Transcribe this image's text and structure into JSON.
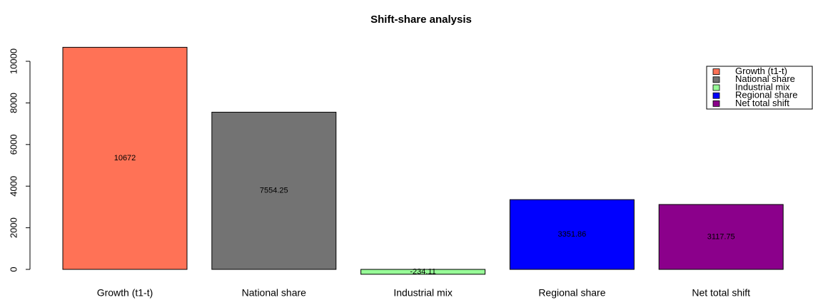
{
  "chart_data": {
    "type": "bar",
    "title": "Shift-share analysis",
    "categories": [
      "Growth (t1-t)",
      "National share",
      "Industrial mix",
      "Regional share",
      "Net total shift"
    ],
    "values": [
      10672,
      7554.25,
      -234.11,
      3351.86,
      3117.75
    ],
    "colors": [
      "#ff7256",
      "#737373",
      "#98fb98",
      "#0000ff",
      "#8b008b"
    ],
    "ylim": [
      -670,
      11110
    ],
    "yticks": [
      0,
      2000,
      4000,
      6000,
      8000,
      10000
    ],
    "legend": "topright"
  }
}
